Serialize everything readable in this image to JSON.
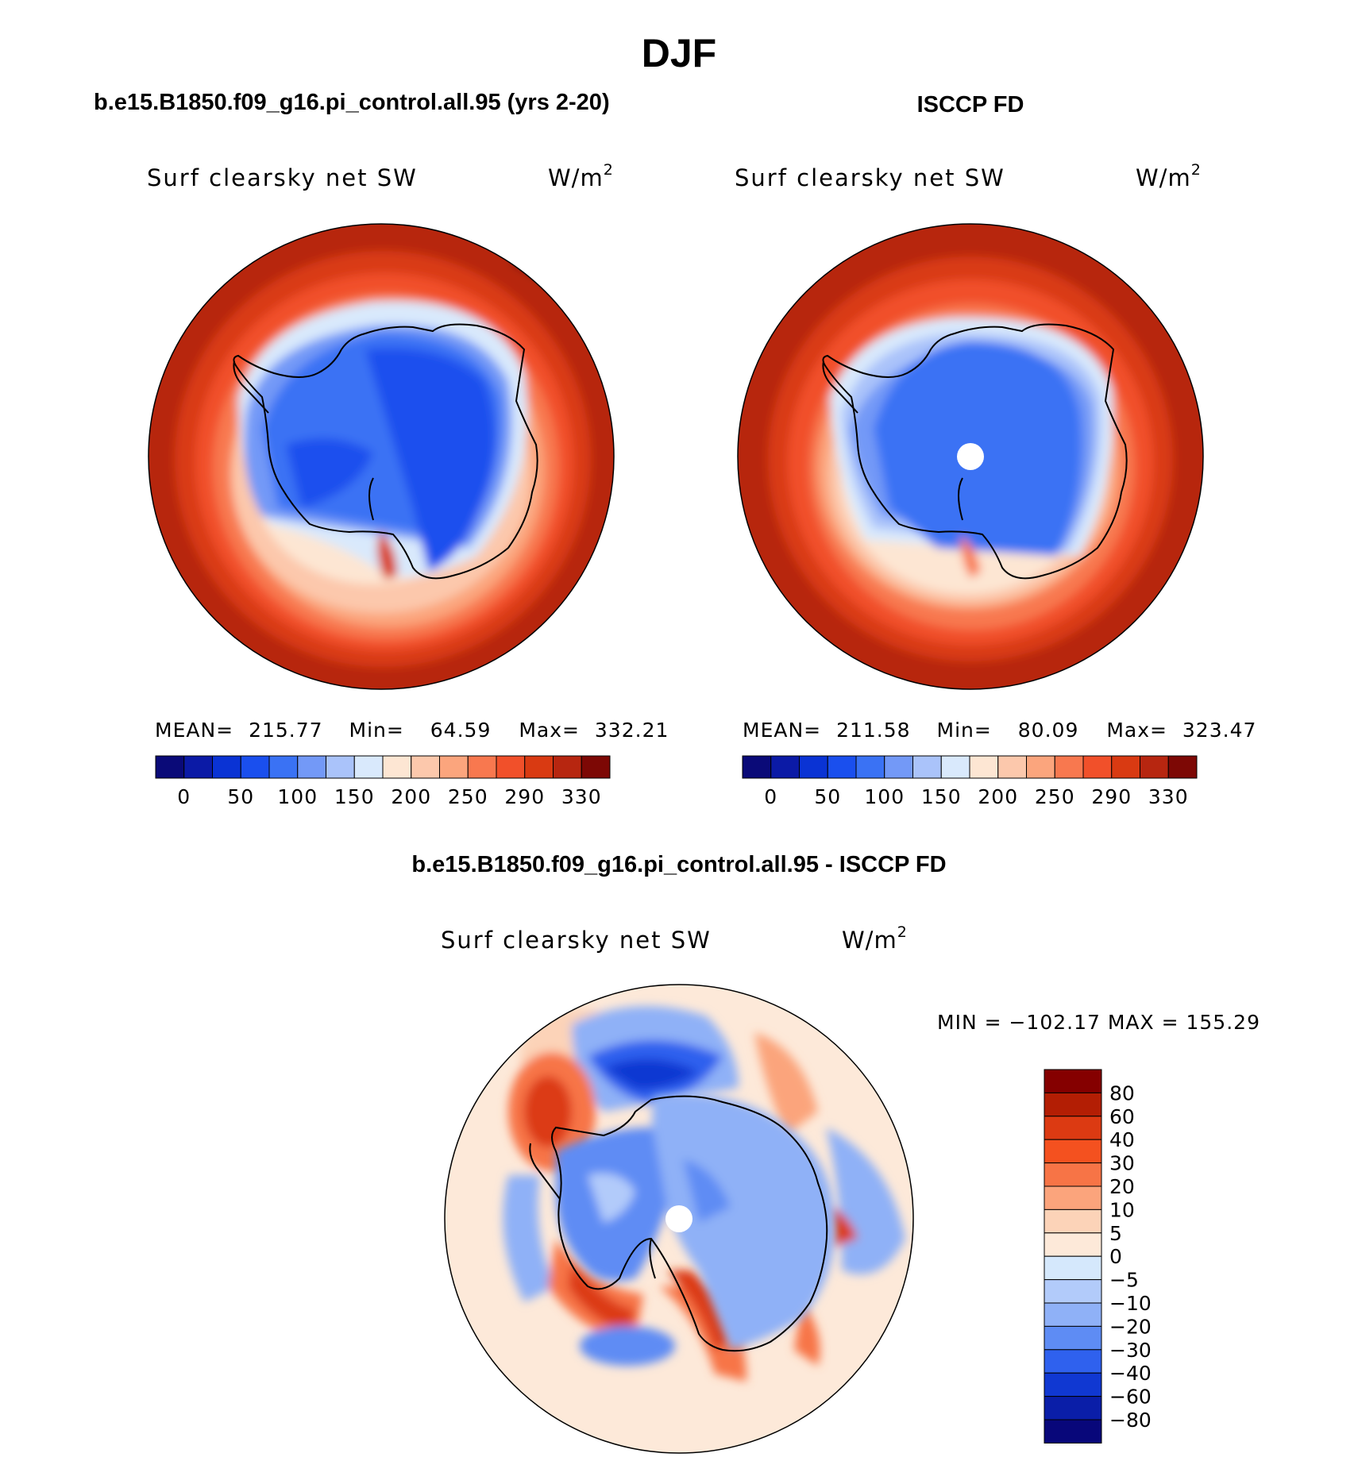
{
  "figure_title": "DJF",
  "chart_data": [
    {
      "type": "heatmap",
      "panel": "model",
      "heading": "b.e15.B1850.f09_g16.pi_control.all.95 (yrs 2-20)",
      "title": "Surf clearsky net SW",
      "units": "W/m",
      "units_exp": "2",
      "projection": "south polar stereographic",
      "stats": {
        "mean_label": "MEAN=",
        "mean": "215.77",
        "min_label": "Min=",
        "min": "64.59",
        "max_label": "Max=",
        "max": "332.21"
      },
      "levels": [
        "0",
        "50",
        "100",
        "150",
        "200",
        "250",
        "290",
        "330"
      ],
      "colors": [
        "#0a0a78",
        "#0b1aa6",
        "#0a33d4",
        "#1a4fee",
        "#3a72f4",
        "#7399f7",
        "#aac3fa",
        "#d9e9fc",
        "#fde6d3",
        "#fcc8ac",
        "#fba57d",
        "#f8784f",
        "#f1502a",
        "#d93a12",
        "#b72610",
        "#7d0805"
      ]
    },
    {
      "type": "heatmap",
      "panel": "obs",
      "heading": "ISCCP FD",
      "title": "Surf clearsky net SW",
      "units": "W/m",
      "units_exp": "2",
      "projection": "south polar stereographic",
      "stats": {
        "mean_label": "MEAN=",
        "mean": "211.58",
        "min_label": "Min=",
        "min": "80.09",
        "max_label": "Max=",
        "max": "323.47"
      },
      "levels": [
        "0",
        "50",
        "100",
        "150",
        "200",
        "250",
        "290",
        "330"
      ],
      "colors": [
        "#0a0a78",
        "#0b1aa6",
        "#0a33d4",
        "#1a4fee",
        "#3a72f4",
        "#7399f7",
        "#aac3fa",
        "#d9e9fc",
        "#fde6d3",
        "#fcc8ac",
        "#fba57d",
        "#f8784f",
        "#f1502a",
        "#d93a12",
        "#b72610",
        "#7d0805"
      ]
    },
    {
      "type": "heatmap",
      "panel": "difference",
      "heading": "b.e15.B1850.f09_g16.pi_control.all.95 - ISCCP FD",
      "title": "Surf clearsky net SW",
      "units": "W/m",
      "units_exp": "2",
      "projection": "south polar stereographic",
      "minmax_text": "MIN = −102.17 MAX = 155.29",
      "levels": [
        "80",
        "60",
        "40",
        "30",
        "20",
        "10",
        "5",
        "0",
        "−5",
        "−10",
        "−20",
        "−30",
        "−40",
        "−60",
        "−80"
      ],
      "colors": [
        "#850000",
        "#b31e04",
        "#dc3a12",
        "#f4511f",
        "#f77446",
        "#fba47c",
        "#fcd3b8",
        "#fde9d9",
        "#d5e8fc",
        "#b2cbfa",
        "#8fb1f7",
        "#5e8cf4",
        "#2f61ee",
        "#1038d2",
        "#0a1ea8",
        "#08077a"
      ]
    }
  ]
}
